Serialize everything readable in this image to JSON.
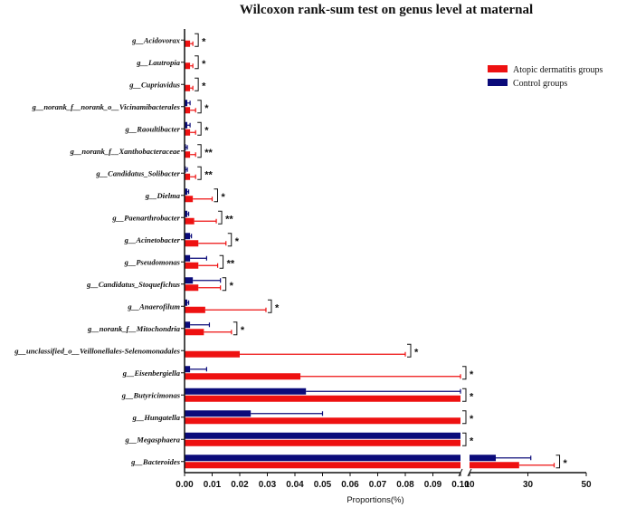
{
  "chart_data": {
    "type": "bar",
    "orientation": "horizontal",
    "title": "Wilcoxon rank-sum test on genus level at maternal",
    "xlabel": "Proportions(%)",
    "x_axis_broken": true,
    "x_ticks_left": [
      "0.00",
      "0.01",
      "0.02",
      "0.03",
      "0.04",
      "0.05",
      "0.06",
      "0.07",
      "0.08",
      "0.09",
      "0.10"
    ],
    "x_ticks_right": [
      "10",
      "30",
      "50"
    ],
    "xlim_left": [
      0,
      0.1
    ],
    "xlim_right": [
      0.1,
      50
    ],
    "legend_position": "top-right",
    "categories": [
      "g__Acidovorax",
      "g__Lautropia",
      "g__Cupriavidus",
      "g__norank_f__norank_o__Vicinamibacterales",
      "g__Raoultibacter",
      "g__norank_f__Xanthobacteraceae",
      "g__Candidatus_Solibacter",
      "g__Dielma",
      "g__Paenarthrobacter",
      "g__Acinetobacter",
      "g__Pseudomonas",
      "g__Candidatus_Stoquefichus",
      "g__Anaerofilum",
      "g__norank_f__Mitochondria",
      "g__unclassified_o__Veillonellales-Selenomonadales",
      "g__Eisenbergiella",
      "g__Butyricimonas",
      "g__Hungatella",
      "g__Megasphaera",
      "g__Bacteroides"
    ],
    "significance": [
      "*",
      "*",
      "*",
      "*",
      "*",
      "**",
      "**",
      "*",
      "**",
      "*",
      "**",
      "*",
      "*",
      "*",
      "*",
      "*",
      "*",
      "*",
      "*",
      "*"
    ],
    "series": [
      {
        "name": "Atopic dermatitis groups",
        "color": "#ee1111",
        "values": [
          0.002,
          0.002,
          0.002,
          0.002,
          0.002,
          0.002,
          0.002,
          0.003,
          0.0035,
          0.005,
          0.005,
          0.005,
          0.0075,
          0.007,
          0.02,
          0.042,
          0.1,
          0.1,
          0.1,
          27
        ],
        "errors": [
          0.001,
          0.001,
          0.001,
          0.002,
          0.002,
          0.002,
          0.002,
          0.007,
          0.008,
          0.01,
          0.007,
          0.008,
          0.022,
          0.01,
          0.06,
          0.058,
          0.0,
          0.0,
          0.0,
          12
        ]
      },
      {
        "name": "Control groups",
        "color": "#0b0b7a",
        "values": [
          0,
          0,
          0,
          0.001,
          0.001,
          0.0005,
          0.0005,
          0.001,
          0.001,
          0.002,
          0.002,
          0.003,
          0.001,
          0.002,
          0,
          0.002,
          0.044,
          0.024,
          0.1,
          19
        ],
        "errors": [
          0,
          0,
          0,
          0.001,
          0.001,
          0.0005,
          0.0005,
          0.0005,
          0.0005,
          0.0005,
          0.006,
          0.01,
          0.0005,
          0.007,
          0,
          0.006,
          0.056,
          0.026,
          0.0,
          12
        ]
      }
    ]
  }
}
